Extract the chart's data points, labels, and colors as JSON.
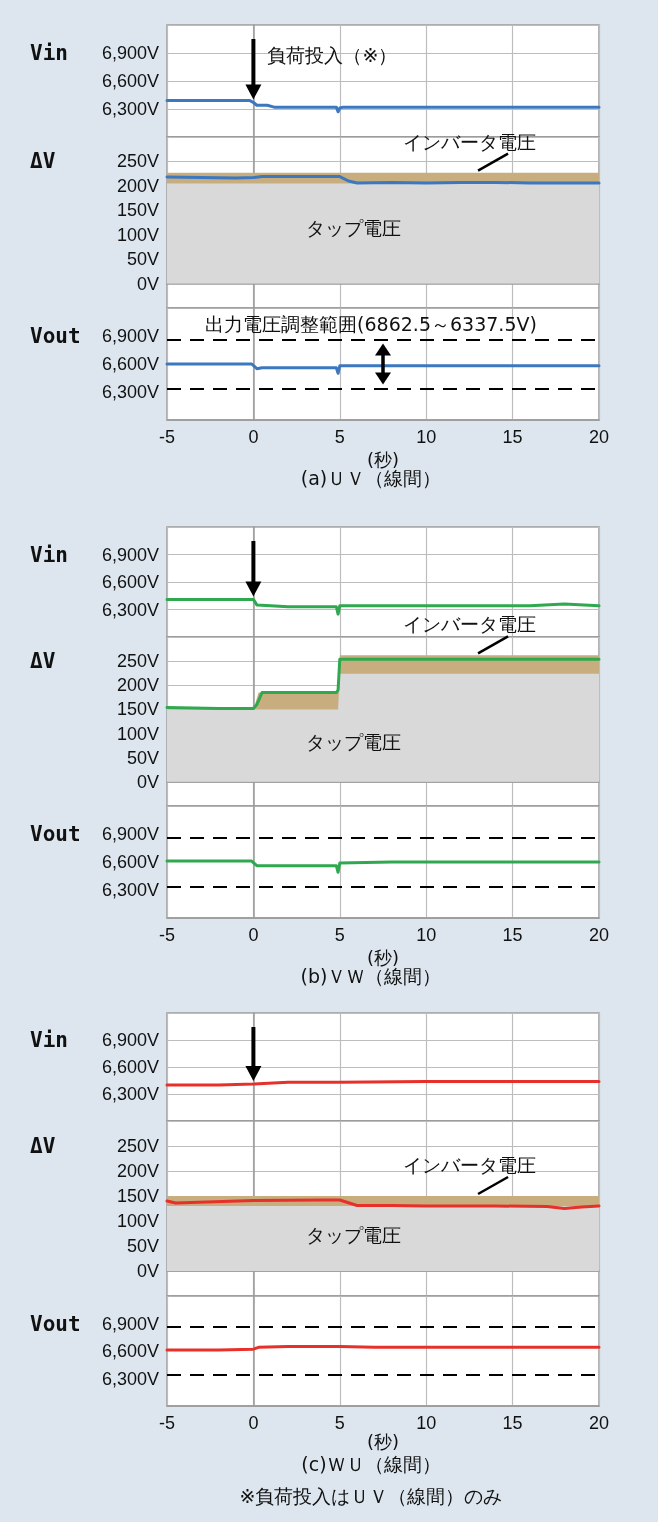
{
  "chart_data": [
    {
      "type": "line",
      "ylabel": "Vin",
      "xlim": [
        -5,
        20
      ],
      "xticks": [
        -5,
        0,
        5,
        10,
        15,
        20
      ],
      "ylim": [
        6000,
        7200
      ],
      "yticks": [
        {
          "value": 6300,
          "label": "6,300V"
        },
        {
          "value": 6600,
          "label": "6,600V"
        },
        {
          "value": 6900,
          "label": "6,900V"
        }
      ],
      "tick_labels": "y",
      "grid": true,
      "marker": "none",
      "annotations": [
        "負荷投入（※）"
      ],
      "series": [
        {
          "color": "#3b78c0",
          "x": [
            -5,
            -4,
            -3,
            -2,
            -1,
            -0.2,
            0,
            0.2,
            0.8,
            1.2,
            2,
            3,
            4,
            4.8,
            4.9,
            5,
            5.2,
            6,
            8,
            10,
            12,
            14,
            16,
            18,
            20
          ],
          "values": [
            6390,
            6390,
            6390,
            6390,
            6390,
            6390,
            6370,
            6340,
            6340,
            6320,
            6320,
            6320,
            6320,
            6320,
            6270,
            6310,
            6320,
            6320,
            6320,
            6320,
            6320,
            6320,
            6320,
            6320,
            6320
          ]
        }
      ]
    },
    {
      "type": "area",
      "stacked": true,
      "ylabel": "ΔV",
      "xlim": [
        -5,
        20
      ],
      "xticks": [
        -5,
        0,
        5,
        10,
        15,
        20
      ],
      "ylim": [
        -50,
        300
      ],
      "yticks": [
        {
          "value": 0,
          "label": "0V"
        },
        {
          "value": 50,
          "label": "50V"
        },
        {
          "value": 100,
          "label": "100V"
        },
        {
          "value": 150,
          "label": "150V"
        },
        {
          "value": 200,
          "label": "200V"
        },
        {
          "value": 250,
          "label": "250V"
        }
      ],
      "tick_labels": "y",
      "grid": true,
      "marker": "none",
      "annotations": [
        "タップ電圧",
        "インバータ電圧"
      ],
      "series": [
        {
          "color": "#d9d9d9",
          "x": [
            -5,
            20
          ],
          "values": [
            205,
            205
          ]
        },
        {
          "color": "#c8ad7f",
          "x": [
            -5,
            20
          ],
          "values": [
            22,
            22
          ]
        },
        {
          "type": "line",
          "color": "#3b78c0",
          "x": [
            -5,
            -3,
            -1,
            0,
            0.5,
            2,
            4,
            5,
            5.5,
            6,
            8,
            10,
            12,
            14,
            16,
            18,
            20
          ],
          "values": [
            218,
            217,
            216,
            217,
            219,
            219,
            219,
            219,
            210,
            206,
            207,
            206,
            207,
            207,
            206,
            206,
            206
          ]
        }
      ]
    },
    {
      "type": "line",
      "ylabel": "Vout",
      "xlabel": "(秒)",
      "xlim": [
        -5,
        20
      ],
      "xticks": [
        -5,
        0,
        5,
        10,
        15,
        20
      ],
      "ylim": [
        6000,
        7200
      ],
      "yticks": [
        {
          "value": 6300,
          "label": "6,300V"
        },
        {
          "value": 6600,
          "label": "6,600V"
        },
        {
          "value": 6900,
          "label": "6,900V"
        }
      ],
      "grid": "x",
      "marker": "none",
      "ref_lines": [
        {
          "axis": "y",
          "value": 6862.5,
          "color": "#000000",
          "line_style": "dashed",
          "label": "出力電圧調整範囲(6862.5～6337.5V)"
        },
        {
          "axis": "y",
          "value": 6337.5,
          "color": "#000000",
          "line_style": "dashed"
        }
      ],
      "annotations": [
        "(a)ＵＶ（線間）"
      ],
      "series": [
        {
          "color": "#3b78c0",
          "x": [
            -5,
            -2,
            -0.1,
            0.2,
            0.5,
            2,
            4,
            4.8,
            4.9,
            5,
            8,
            12,
            16,
            20
          ],
          "values": [
            6600,
            6600,
            6600,
            6550,
            6560,
            6560,
            6560,
            6560,
            6500,
            6580,
            6580,
            6580,
            6580,
            6580
          ]
        }
      ]
    },
    {
      "type": "line",
      "ylabel": "Vin",
      "xlim": [
        -5,
        20
      ],
      "xticks": [
        -5,
        0,
        5,
        10,
        15,
        20
      ],
      "ylim": [
        6000,
        7200
      ],
      "yticks": [
        {
          "value": 6300,
          "label": "6,300V"
        },
        {
          "value": 6600,
          "label": "6,600V"
        },
        {
          "value": 6900,
          "label": "6,900V"
        }
      ],
      "tick_labels": "y",
      "grid": true,
      "marker": "none",
      "series": [
        {
          "color": "#2fa84f",
          "x": [
            -5,
            -2,
            0,
            0.2,
            1,
            2,
            4,
            4.8,
            4.9,
            5,
            5.2,
            8,
            12,
            16,
            18,
            20
          ],
          "values": [
            6410,
            6410,
            6410,
            6350,
            6340,
            6330,
            6330,
            6330,
            6250,
            6340,
            6340,
            6340,
            6340,
            6340,
            6360,
            6340
          ]
        }
      ]
    },
    {
      "type": "area",
      "stacked": true,
      "ylabel": "ΔV",
      "xlim": [
        -5,
        20
      ],
      "xticks": [
        -5,
        0,
        5,
        10,
        15,
        20
      ],
      "ylim": [
        -50,
        300
      ],
      "yticks": [
        {
          "value": 0,
          "label": "0V"
        },
        {
          "value": 50,
          "label": "50V"
        },
        {
          "value": 100,
          "label": "100V"
        },
        {
          "value": 150,
          "label": "150V"
        },
        {
          "value": 200,
          "label": "200V"
        },
        {
          "value": 250,
          "label": "250V"
        }
      ],
      "tick_labels": "y",
      "grid": true,
      "marker": "none",
      "annotations": [
        "タップ電圧",
        "インバータ電圧"
      ],
      "series": [
        {
          "color": "#d9d9d9",
          "x": [
            -5,
            0,
            0.3,
            4.9,
            5,
            20
          ],
          "values": [
            150,
            150,
            150,
            150,
            224,
            224
          ]
        },
        {
          "color": "#c8ad7f",
          "x": [
            -5,
            0,
            0.3,
            4.9,
            5,
            20
          ],
          "values": [
            0,
            0,
            35,
            35,
            38,
            38
          ]
        },
        {
          "type": "line",
          "color": "#2fa84f",
          "x": [
            -5,
            -2,
            0,
            0.2,
            0.5,
            2,
            4,
            4.8,
            4.9,
            5,
            5.2,
            10,
            15,
            20
          ],
          "values": [
            154,
            152,
            152,
            160,
            185,
            185,
            185,
            185,
            190,
            254,
            254,
            254,
            254,
            254
          ]
        }
      ]
    },
    {
      "type": "line",
      "ylabel": "Vout",
      "xlabel": "(秒)",
      "xlim": [
        -5,
        20
      ],
      "xticks": [
        -5,
        0,
        5,
        10,
        15,
        20
      ],
      "ylim": [
        6000,
        7200
      ],
      "yticks": [
        {
          "value": 6300,
          "label": "6,300V"
        },
        {
          "value": 6600,
          "label": "6,600V"
        },
        {
          "value": 6900,
          "label": "6,900V"
        }
      ],
      "grid": "x",
      "marker": "none",
      "ref_lines": [
        {
          "axis": "y",
          "value": 6862.5,
          "color": "#000000",
          "line_style": "dashed"
        },
        {
          "axis": "y",
          "value": 6337.5,
          "color": "#000000",
          "line_style": "dashed"
        }
      ],
      "annotations": [
        "(b)ＶＷ（線間）"
      ],
      "series": [
        {
          "color": "#2fa84f",
          "x": [
            -5,
            -2,
            -0.1,
            0.2,
            2,
            4,
            4.8,
            4.9,
            5,
            8,
            12,
            16,
            20
          ],
          "values": [
            6610,
            6610,
            6610,
            6560,
            6560,
            6560,
            6560,
            6490,
            6590,
            6600,
            6600,
            6600,
            6600
          ]
        }
      ]
    },
    {
      "type": "line",
      "ylabel": "Vin",
      "xlim": [
        -5,
        20
      ],
      "xticks": [
        -5,
        0,
        5,
        10,
        15,
        20
      ],
      "ylim": [
        6000,
        7200
      ],
      "yticks": [
        {
          "value": 6300,
          "label": "6,300V"
        },
        {
          "value": 6600,
          "label": "6,600V"
        },
        {
          "value": 6900,
          "label": "6,900V"
        }
      ],
      "tick_labels": "y",
      "grid": true,
      "marker": "none",
      "series": [
        {
          "color": "#e8302a",
          "x": [
            -5,
            -2,
            0,
            2,
            5,
            10,
            15,
            20
          ],
          "values": [
            6400,
            6400,
            6410,
            6430,
            6430,
            6440,
            6440,
            6440
          ]
        }
      ]
    },
    {
      "type": "area",
      "stacked": true,
      "ylabel": "ΔV",
      "xlim": [
        -5,
        20
      ],
      "xticks": [
        -5,
        0,
        5,
        10,
        15,
        20
      ],
      "ylim": [
        -50,
        300
      ],
      "yticks": [
        {
          "value": 0,
          "label": "0V"
        },
        {
          "value": 50,
          "label": "50V"
        },
        {
          "value": 100,
          "label": "100V"
        },
        {
          "value": 150,
          "label": "150V"
        },
        {
          "value": 200,
          "label": "200V"
        },
        {
          "value": 250,
          "label": "250V"
        }
      ],
      "tick_labels": "y",
      "grid": true,
      "marker": "none",
      "annotations": [
        "タップ電圧",
        "インバータ電圧"
      ],
      "series": [
        {
          "color": "#d9d9d9",
          "x": [
            -5,
            20
          ],
          "values": [
            130,
            130
          ]
        },
        {
          "color": "#c8ad7f",
          "x": [
            -5,
            20
          ],
          "values": [
            20,
            20
          ]
        },
        {
          "type": "line",
          "color": "#e8302a",
          "x": [
            -5,
            -4.5,
            0,
            4,
            5,
            6,
            8,
            10,
            14,
            17,
            18,
            19,
            20
          ],
          "values": [
            140,
            136,
            141,
            142,
            142,
            131,
            131,
            130,
            130,
            129,
            125,
            128,
            130
          ]
        }
      ]
    },
    {
      "type": "line",
      "ylabel": "Vout",
      "xlabel": "(秒)",
      "xlim": [
        -5,
        20
      ],
      "xticks": [
        -5,
        0,
        5,
        10,
        15,
        20
      ],
      "ylim": [
        6000,
        7200
      ],
      "yticks": [
        {
          "value": 6300,
          "label": "6,300V"
        },
        {
          "value": 6600,
          "label": "6,600V"
        },
        {
          "value": 6900,
          "label": "6,900V"
        }
      ],
      "grid": "x",
      "marker": "none",
      "ref_lines": [
        {
          "axis": "y",
          "value": 6862.5,
          "color": "#000000",
          "line_style": "dashed"
        },
        {
          "axis": "y",
          "value": 6337.5,
          "color": "#000000",
          "line_style": "dashed"
        }
      ],
      "annotations": [
        "(c)ＷＵ（線間）",
        "※負荷投入はＵＶ（線間）のみ"
      ],
      "series": [
        {
          "color": "#e8302a",
          "x": [
            -5,
            -2,
            0,
            0.3,
            2,
            5,
            7,
            10,
            15,
            20
          ],
          "values": [
            6610,
            6610,
            6620,
            6640,
            6650,
            6650,
            6640,
            6640,
            6640,
            6640
          ]
        }
      ]
    }
  ]
}
